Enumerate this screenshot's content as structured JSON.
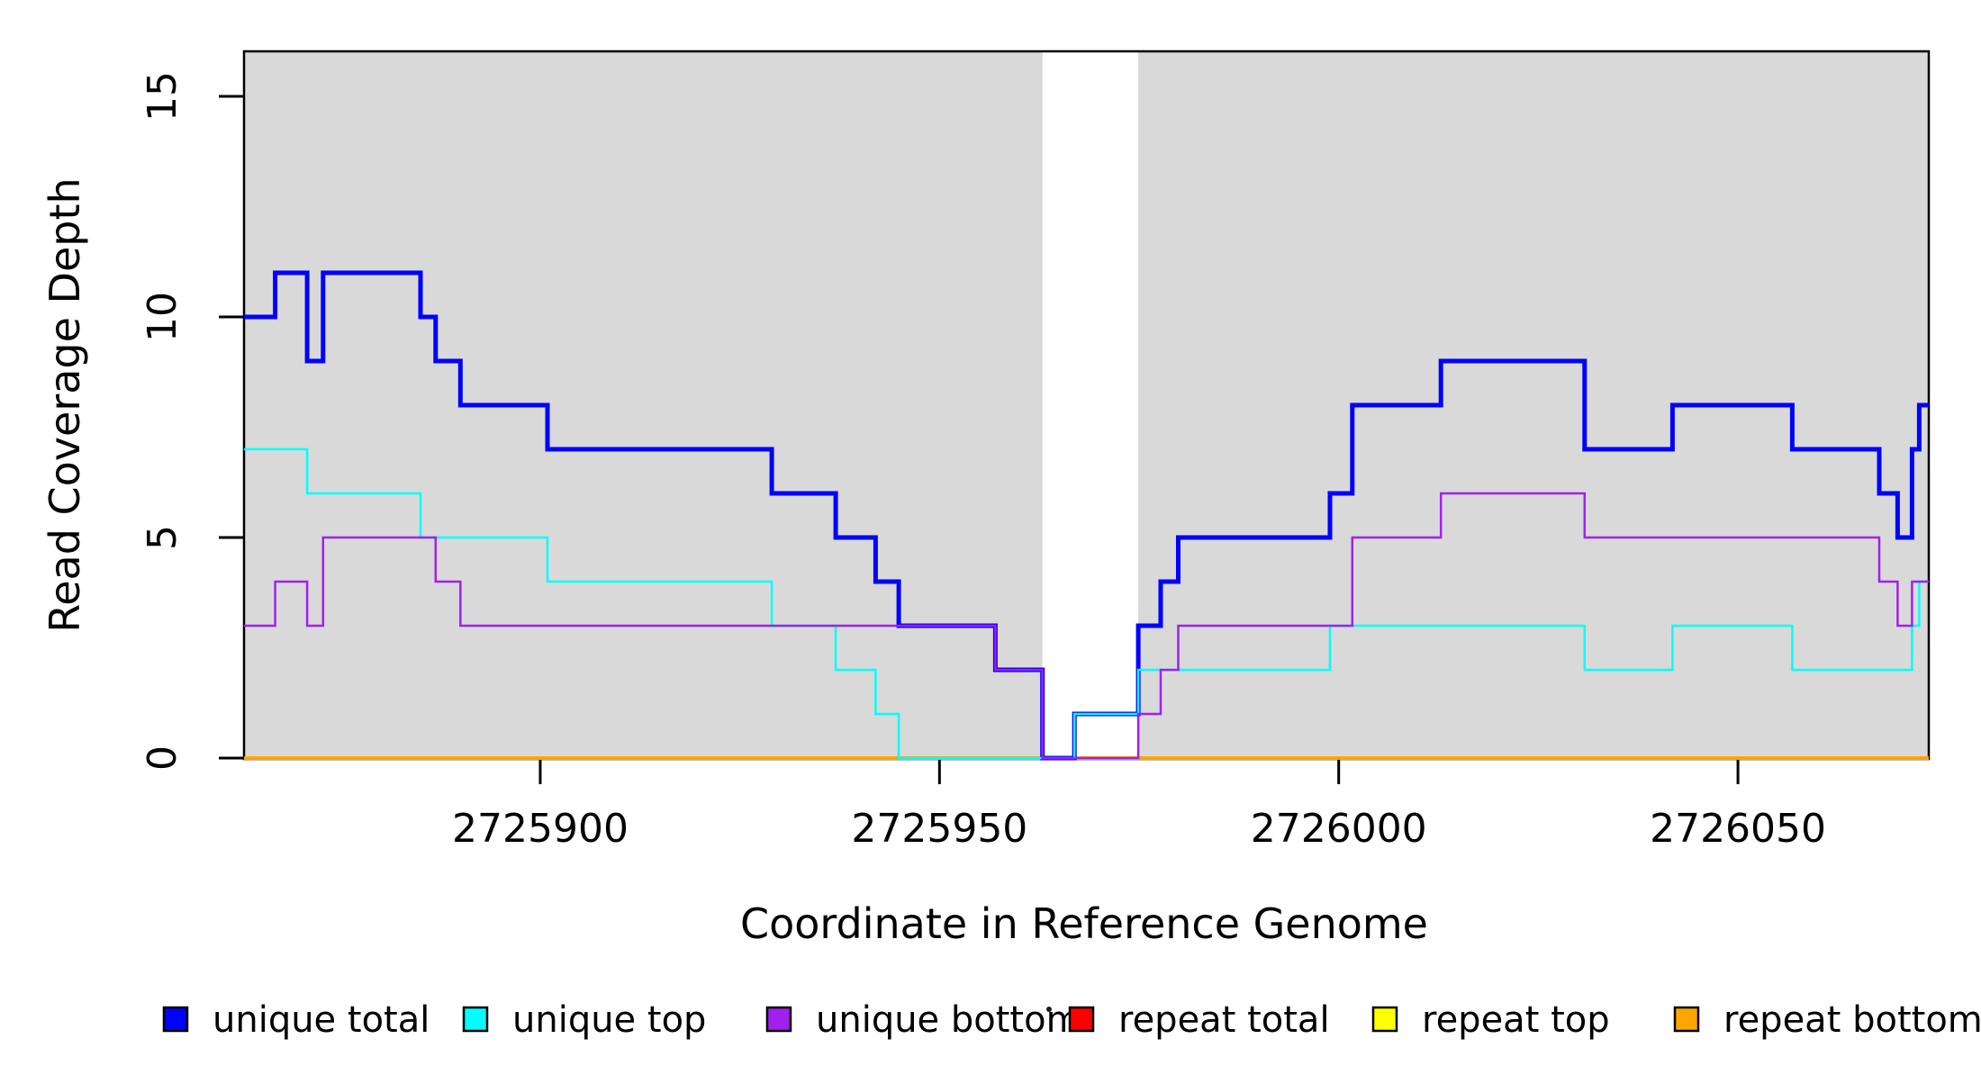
{
  "figure": {
    "x_axis_title": "Coordinate in Reference Genome",
    "y_axis_title": "Read Coverage Depth"
  },
  "chart_data": {
    "type": "line",
    "subtype": "step-post",
    "title": "",
    "xlabel": "Coordinate in Reference Genome",
    "ylabel": "Read Coverage Depth",
    "xlim": [
      2725862.9,
      2726073.9
    ],
    "ylim": [
      0,
      16.0
    ],
    "grid": false,
    "legend_position": "bottom",
    "x_ticks": [
      {
        "value": 2725900,
        "label": "2725900"
      },
      {
        "value": 2725950,
        "label": "2725950"
      },
      {
        "value": 2726000,
        "label": "2726000"
      },
      {
        "value": 2726050,
        "label": "2726050"
      }
    ],
    "y_ticks": [
      {
        "value": 0,
        "label": "0"
      },
      {
        "value": 5,
        "label": "5"
      },
      {
        "value": 10,
        "label": "10"
      },
      {
        "value": 15,
        "label": "15"
      }
    ],
    "background_regions": [
      {
        "x0": 2725862.9,
        "x1": 2725962.9,
        "color": "#D9D9D9",
        "note": "covered reference block left of gap"
      },
      {
        "x0": 2725974.9,
        "x1": 2726073.9,
        "color": "#D9D9D9",
        "note": "covered reference block right of gap"
      }
    ],
    "series": [
      {
        "name": "repeat total",
        "color": "#FF0000",
        "line_width": 3,
        "steps": [
          [
            2725862.9,
            0
          ]
        ]
      },
      {
        "name": "repeat top",
        "color": "#FFFF00",
        "line_width": 3,
        "steps": [
          [
            2725862.9,
            0
          ]
        ]
      },
      {
        "name": "repeat bottom",
        "color": "#FFA500",
        "line_width": 4,
        "steps": [
          [
            2725862.9,
            0
          ]
        ]
      },
      {
        "name": "unique total",
        "color": "#0000FF",
        "line_width": 5,
        "steps": [
          [
            2725862.9,
            10
          ],
          [
            2725866.8,
            11
          ],
          [
            2725870.8,
            9
          ],
          [
            2725872.8,
            11
          ],
          [
            2725885.0,
            10
          ],
          [
            2725886.9,
            9
          ],
          [
            2725890.0,
            8
          ],
          [
            2725900.9,
            7
          ],
          [
            2725929.0,
            6
          ],
          [
            2725937.0,
            5
          ],
          [
            2725942.0,
            4
          ],
          [
            2725944.9,
            3
          ],
          [
            2725957.0,
            2
          ],
          [
            2725962.9,
            0
          ],
          [
            2725966.9,
            1
          ],
          [
            2725974.9,
            3
          ],
          [
            2725977.7,
            4
          ],
          [
            2725979.9,
            5
          ],
          [
            2725998.9,
            6
          ],
          [
            2726001.7,
            8
          ],
          [
            2726012.8,
            9
          ],
          [
            2726030.8,
            7
          ],
          [
            2726041.8,
            8
          ],
          [
            2726056.8,
            7
          ],
          [
            2726067.7,
            6
          ],
          [
            2726070.0,
            5
          ],
          [
            2726071.8,
            7
          ],
          [
            2726072.7,
            8
          ]
        ]
      },
      {
        "name": "unique top",
        "color": "#00FFFF",
        "line_width": 2.5,
        "steps": [
          [
            2725862.9,
            7
          ],
          [
            2725870.8,
            6
          ],
          [
            2725885.0,
            5
          ],
          [
            2725900.9,
            4
          ],
          [
            2725929.0,
            3
          ],
          [
            2725937.0,
            2
          ],
          [
            2725942.0,
            1
          ],
          [
            2725944.9,
            0
          ],
          [
            2725966.9,
            1
          ],
          [
            2725974.9,
            2
          ],
          [
            2725998.9,
            3
          ],
          [
            2726030.8,
            2
          ],
          [
            2726041.8,
            3
          ],
          [
            2726056.8,
            2
          ],
          [
            2726071.8,
            3
          ],
          [
            2726072.7,
            4
          ]
        ]
      },
      {
        "name": "unique bottom",
        "color": "#A020F0",
        "line_width": 2.5,
        "steps": [
          [
            2725862.9,
            3
          ],
          [
            2725866.8,
            4
          ],
          [
            2725870.8,
            3
          ],
          [
            2725872.8,
            5
          ],
          [
            2725886.9,
            4
          ],
          [
            2725890.0,
            3
          ],
          [
            2725957.0,
            2
          ],
          [
            2725962.9,
            0
          ],
          [
            2725974.9,
            1
          ],
          [
            2725977.7,
            2
          ],
          [
            2725979.9,
            3
          ],
          [
            2726001.7,
            5
          ],
          [
            2726012.8,
            6
          ],
          [
            2726030.8,
            5
          ],
          [
            2726067.7,
            4
          ],
          [
            2726070.0,
            3
          ],
          [
            2726071.8,
            4
          ]
        ]
      }
    ],
    "legend": {
      "entries": [
        {
          "label": "unique total",
          "color": "#0000FF"
        },
        {
          "label": "unique top",
          "color": "#00FFFF"
        },
        {
          "label": "unique bottom",
          "color": "#A020F0"
        },
        {
          "label": "repeat total",
          "color": "#FF0000"
        },
        {
          "label": "repeat top",
          "color": "#FFFF00"
        },
        {
          "label": "repeat bottom",
          "color": "#FFA500"
        }
      ]
    }
  }
}
